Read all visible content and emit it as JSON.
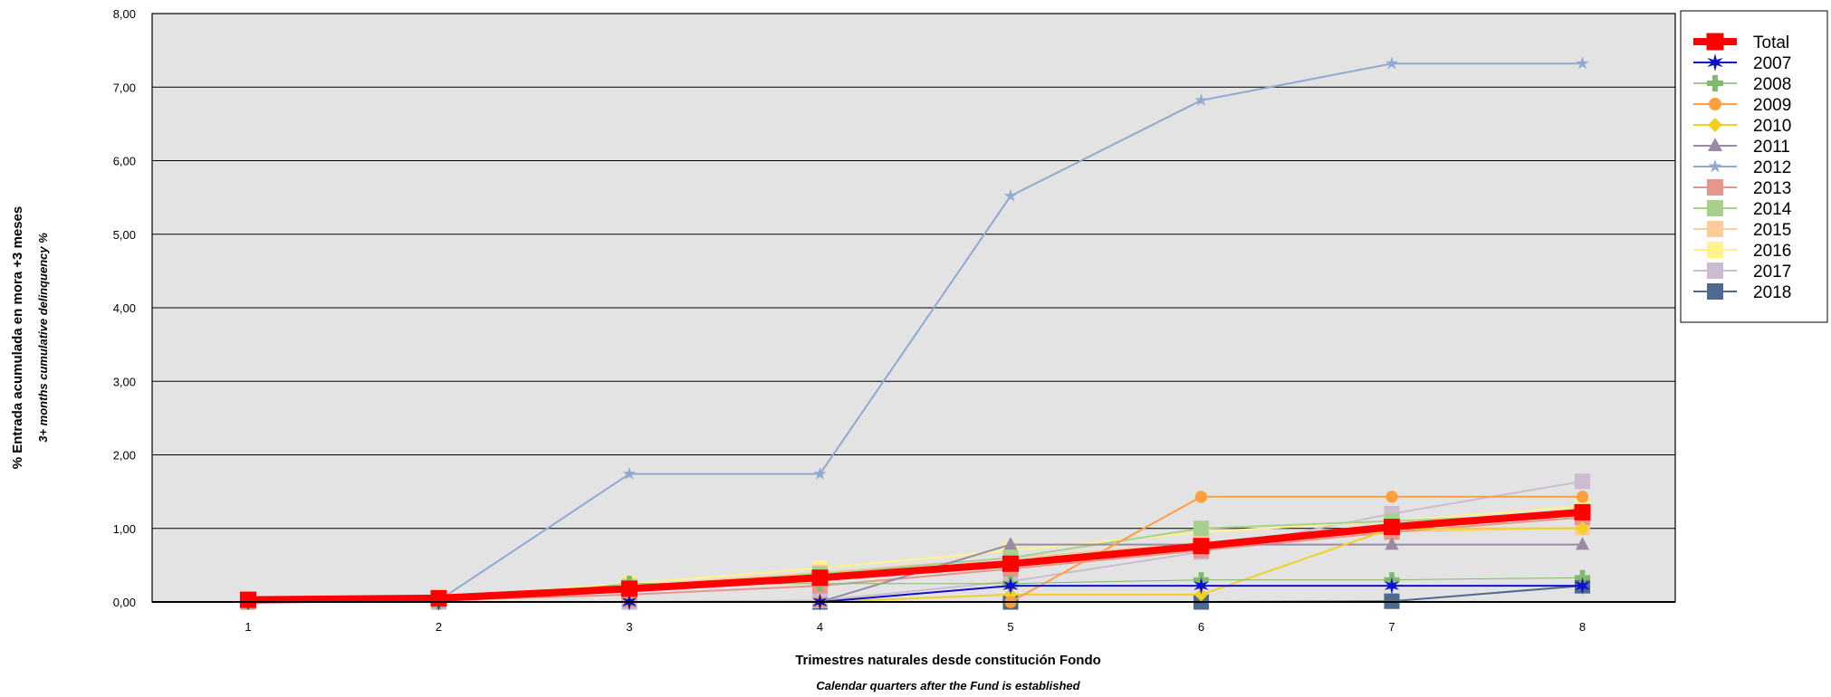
{
  "chart_data": {
    "type": "line",
    "xlabel": "Trimestres naturales desde constitución Fondo",
    "xlabel_secondary": "Calendar quarters after the Fund is established",
    "ylabel": "% Entrada acumulada en mora +3 meses",
    "ylabel_secondary": "3+ months cumulative delinquency %",
    "categories": [
      "1",
      "2",
      "3",
      "4",
      "5",
      "6",
      "7",
      "8"
    ],
    "ylim": [
      0,
      8
    ],
    "yticks": [
      "0,00",
      "1,00",
      "2,00",
      "3,00",
      "4,00",
      "5,00",
      "6,00",
      "7,00",
      "8,00"
    ],
    "grid": "horizontal",
    "legend_position": "right",
    "series": [
      {
        "name": "2018",
        "color": "#4f6a8f",
        "marker": "square",
        "width": 2,
        "values": [
          0,
          0,
          0,
          0,
          0,
          0,
          0.01,
          0.22
        ]
      },
      {
        "name": "2017",
        "color": "#ccbcd1",
        "marker": "square",
        "width": 2,
        "values": [
          0,
          0,
          0,
          0.02,
          0.28,
          0.68,
          1.2,
          1.64
        ]
      },
      {
        "name": "2016",
        "color": "#fff38a",
        "marker": "square",
        "width": 2,
        "values": [
          0,
          0.06,
          0.25,
          0.46,
          0.7,
          0.95,
          1.1,
          1.3
        ]
      },
      {
        "name": "2015",
        "color": "#ffcc99",
        "marker": "square",
        "width": 2,
        "values": [
          0,
          0.07,
          0.22,
          0.4,
          0.6,
          0.8,
          0.95,
          1.01
        ]
      },
      {
        "name": "2014",
        "color": "#a8d08d",
        "marker": "square",
        "width": 2,
        "values": [
          0,
          0.04,
          0.2,
          0.38,
          0.6,
          1.0,
          1.1,
          1.2
        ]
      },
      {
        "name": "2013",
        "color": "#e8958a",
        "marker": "square",
        "width": 2,
        "values": [
          0,
          0.02,
          0.1,
          0.22,
          0.45,
          0.7,
          0.95,
          1.15
        ]
      },
      {
        "name": "2012",
        "color": "#8fa9cf",
        "marker": "star",
        "width": 2,
        "values": [
          0,
          0.02,
          1.74,
          1.74,
          5.52,
          6.82,
          7.32,
          7.32
        ]
      },
      {
        "name": "2011",
        "color": "#9b8aa6",
        "marker": "triangle",
        "width": 2,
        "values": [
          0,
          0,
          0,
          0,
          0.78,
          0.78,
          0.78,
          0.78
        ]
      },
      {
        "name": "2010",
        "color": "#f0d020",
        "marker": "diamond",
        "width": 2,
        "values": [
          0,
          0,
          0,
          0,
          0.1,
          0.1,
          1.0,
          1.0
        ]
      },
      {
        "name": "2009",
        "color": "#ff9f40",
        "marker": "circle",
        "width": 2,
        "values": [
          0,
          0,
          0,
          0,
          0,
          1.43,
          1.43,
          1.43
        ]
      },
      {
        "name": "2008",
        "color": "#7fba6a",
        "marker": "plus",
        "width": 1,
        "values": [
          0,
          0,
          0.25,
          0.25,
          0.25,
          0.3,
          0.3,
          0.33
        ]
      },
      {
        "name": "2007",
        "color": "#1010c8",
        "marker": "star6",
        "width": 2,
        "values": [
          0,
          0,
          0,
          0,
          0.22,
          0.22,
          0.22,
          0.22
        ]
      },
      {
        "name": "Total",
        "color": "#ff0000",
        "marker": "square",
        "width": 8,
        "values": [
          0.03,
          0.05,
          0.18,
          0.33,
          0.52,
          0.76,
          1.02,
          1.22
        ]
      }
    ],
    "legend_order": [
      "Total",
      "2007",
      "2008",
      "2009",
      "2010",
      "2011",
      "2012",
      "2013",
      "2014",
      "2015",
      "2016",
      "2017",
      "2018"
    ]
  }
}
